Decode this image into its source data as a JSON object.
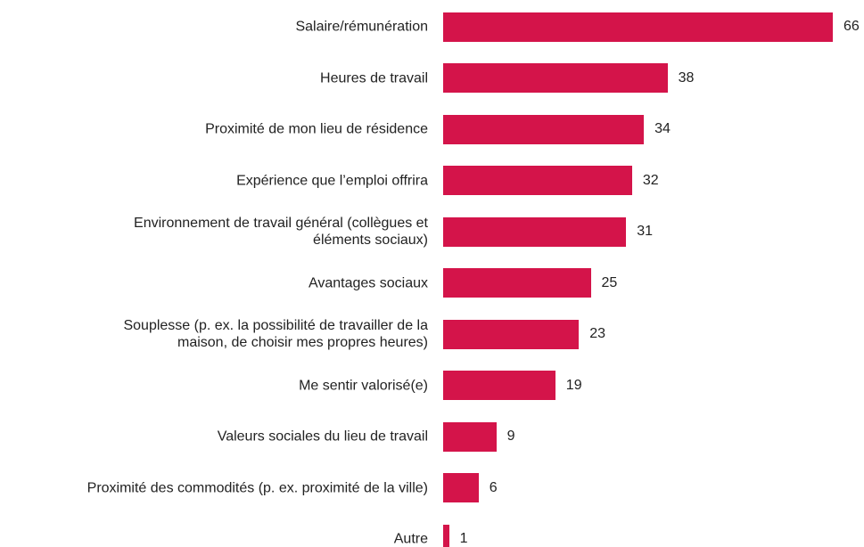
{
  "chart_data": {
    "type": "bar",
    "orientation": "horizontal",
    "color": "#d4144a",
    "categories": [
      "Salaire/rémunération",
      "Heures de travail",
      "Proximité de mon lieu de résidence",
      "Expérience que l’emploi offrira",
      "Environnement de travail général (collègues et\néléments sociaux)",
      "Avantages sociaux",
      "Souplesse (p. ex. la possibilité de travailler de la\nmaison, de choisir mes propres heures)",
      "Me sentir valorisé(e)",
      "Valeurs sociales du lieu de travail",
      "Proximité des commodités (p. ex. proximité de la ville)",
      "Autre"
    ],
    "values": [
      66,
      38,
      34,
      32,
      31,
      25,
      23,
      19,
      9,
      6,
      1
    ]
  }
}
